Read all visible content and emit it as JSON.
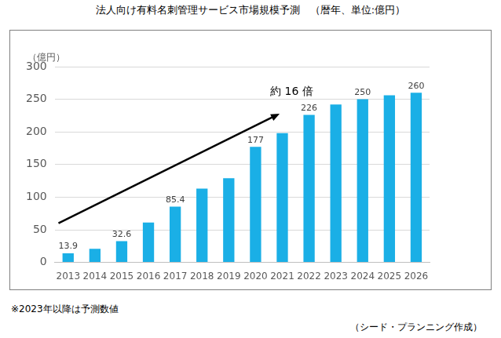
{
  "chart_data": {
    "type": "bar",
    "title": "法人向け有料名刺管理サービス市場規模予測　（暦年、単位:億円）",
    "y_label": "（億円）",
    "annotation": "約 16 倍",
    "footnote": "※2023年以降は予測数値",
    "source": "（シード・プランニング作成）",
    "categories": [
      "2013",
      "2014",
      "2015",
      "2016",
      "2017",
      "2018",
      "2019",
      "2020",
      "2021",
      "2022",
      "2023",
      "2024",
      "2025",
      "2026"
    ],
    "values": [
      13.9,
      21,
      32.6,
      61,
      85.4,
      113,
      129,
      177,
      198,
      226,
      242,
      250,
      256,
      260
    ],
    "value_labels": [
      "13.9",
      null,
      "32.6",
      null,
      "85.4",
      null,
      null,
      "177",
      null,
      "226",
      null,
      "250",
      null,
      "260"
    ],
    "data_labels": true,
    "color": "#1aafe6",
    "ylim": [
      0,
      300
    ],
    "yticks": [
      0,
      50,
      100,
      150,
      200,
      250,
      300
    ],
    "grid": true
  }
}
